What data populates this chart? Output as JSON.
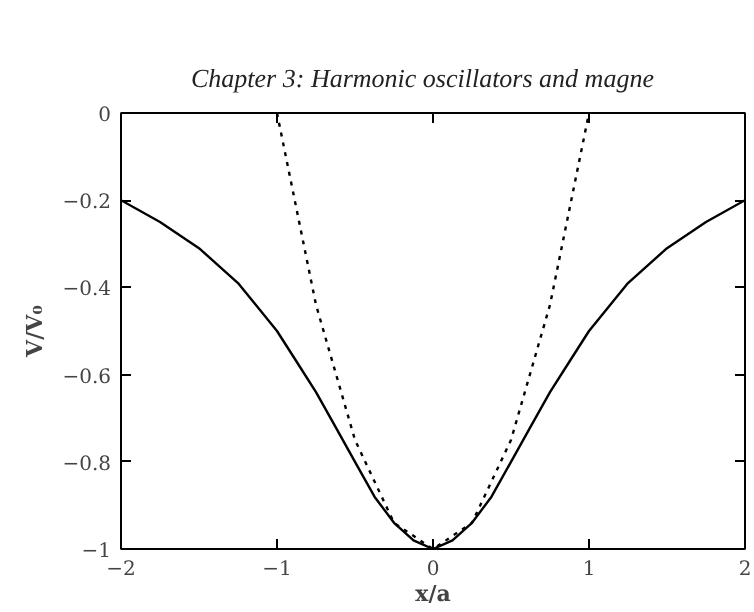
{
  "chart_data": {
    "type": "line",
    "annotations": [
      "Chapter 3: Harmonic oscillators and magne"
    ],
    "xlabel": "x/a",
    "ylabel": "V/V₀",
    "xlim": [
      -2,
      2
    ],
    "ylim": [
      -1,
      0
    ],
    "xticks": [
      {
        "value": -2,
        "label": "−2"
      },
      {
        "value": -1,
        "label": "−1"
      },
      0,
      1,
      2
    ],
    "yticks": [
      {
        "value": -1,
        "label": "−1"
      },
      {
        "value": -0.8,
        "label": "−0.8"
      },
      {
        "value": -0.6,
        "label": "−0.6"
      },
      {
        "value": -0.4,
        "label": "−0.4"
      },
      {
        "value": -0.2,
        "label": "−0.2"
      },
      0
    ],
    "grid": false,
    "series": [
      {
        "color": "#000000",
        "line_style": "solid",
        "x": [
          -2,
          -1.75,
          -1.5,
          -1.25,
          -1,
          -0.875,
          -0.75,
          -0.625,
          -0.5,
          -0.375,
          -0.25,
          -0.125,
          0,
          0.125,
          0.25,
          0.375,
          0.5,
          0.625,
          0.75,
          0.875,
          1,
          1.25,
          1.5,
          1.75,
          2
        ],
        "values": [
          -0.2,
          -0.25,
          -0.31,
          -0.39,
          -0.5,
          -0.57,
          -0.64,
          -0.72,
          -0.8,
          -0.88,
          -0.94,
          -0.98,
          -1,
          -0.98,
          -0.94,
          -0.88,
          -0.8,
          -0.72,
          -0.64,
          -0.57,
          -0.5,
          -0.39,
          -0.31,
          -0.25,
          -0.2
        ]
      },
      {
        "color": "#000000",
        "line_style": "dotted",
        "x": [
          -1,
          -0.75,
          -0.5,
          -0.25,
          0,
          0.25,
          0.5,
          0.75,
          1
        ],
        "values": [
          0,
          -0.44,
          -0.75,
          -0.94,
          -1,
          -0.94,
          -0.75,
          -0.44,
          0
        ]
      }
    ]
  }
}
